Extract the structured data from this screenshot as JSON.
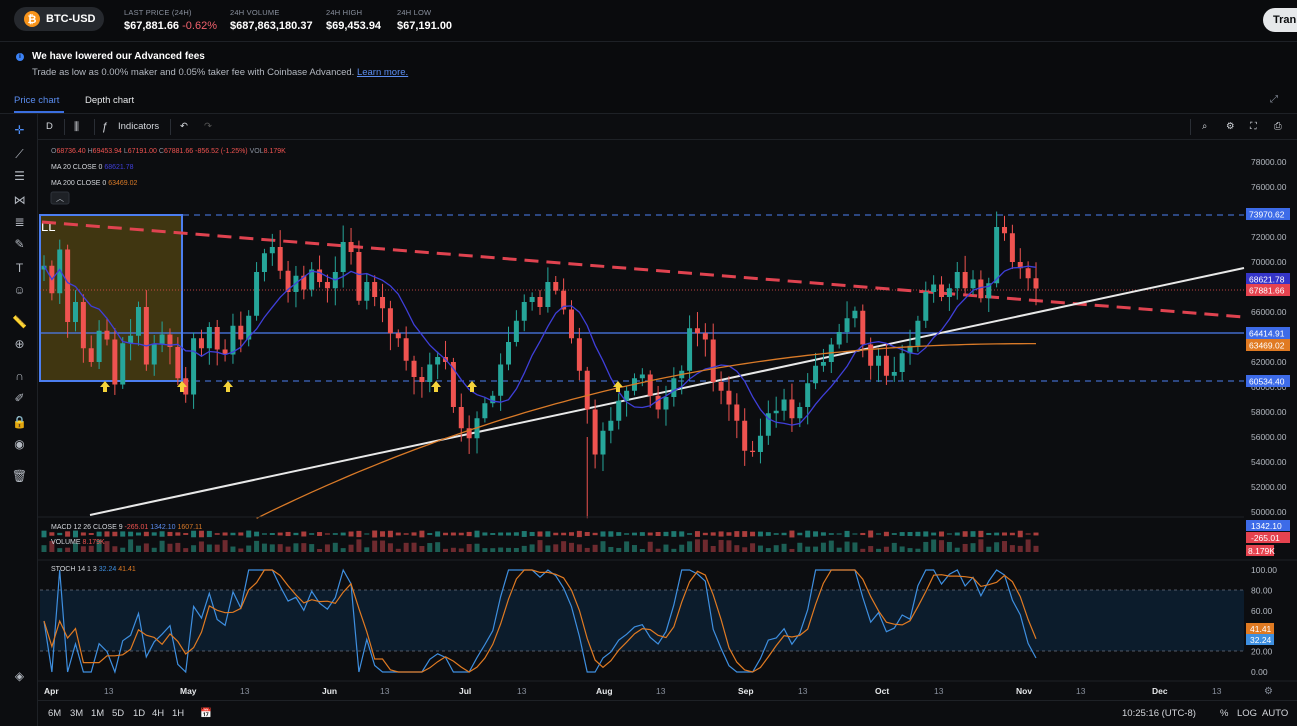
{
  "header": {
    "pair": "BTC-USD",
    "btc_symbol": "₿",
    "stats": [
      {
        "label": "LAST PRICE (24H)",
        "value": "$67,881.66",
        "change": "-0.62%"
      },
      {
        "label": "24H VOLUME",
        "value": "$687,863,180.37"
      },
      {
        "label": "24H HIGH",
        "value": "$69,453.94"
      },
      {
        "label": "24H LOW",
        "value": "$67,191.00"
      }
    ],
    "trade_label": "Tran"
  },
  "banner": {
    "title": "We have lowered our Advanced fees",
    "text": "Trade as low as 0.00% maker and 0.05% taker fee with Coinbase Advanced.",
    "link": "Learn more."
  },
  "tabs": {
    "price": "Price chart",
    "depth": "Depth chart"
  },
  "toolbar": {
    "interval": "D",
    "indicators": "Indicators"
  },
  "legend": {
    "ohlc": {
      "o": "68736.40",
      "h": "69453.94",
      "l": "67191.00",
      "c": "67881.66",
      "chg": "-856.52 (-1.25%)",
      "vol": "8.179K"
    },
    "ma20_label": "MA 20 CLOSE 0",
    "ma20_val": "68621.78",
    "ma200_label": "MA 200 CLOSE 0",
    "ma200_val": "63469.02"
  },
  "drawing_label": "LL",
  "price_axis": [
    "78000.00",
    "76000.00",
    "74000.00",
    "72000.00",
    "70000.00",
    "68000.00",
    "66000.00",
    "64000.00",
    "62000.00",
    "60000.00",
    "58000.00",
    "56000.00",
    "54000.00",
    "52000.00",
    "50000.00"
  ],
  "price_tags": {
    "top_line": "73970.62",
    "ma20": "68621.78",
    "last": "67881.66",
    "support_line": "64414.91",
    "ma200": "63469.02",
    "low_line": "60534.40"
  },
  "macd": {
    "label": "MACD 12 26 CLOSE 9",
    "hist": "-265.01",
    "macd": "1342.10",
    "signal": "1607.11"
  },
  "volume": {
    "label": "VOLUME",
    "val": "8.179K"
  },
  "stoch": {
    "label": "STOCH 14 1 3",
    "k": "32.24",
    "d": "41.41",
    "axis": [
      "100.00",
      "80.00",
      "60.00",
      "40.00",
      "20.00",
      "0.00"
    ]
  },
  "time_axis": [
    "Apr",
    "13",
    "May",
    "13",
    "Jun",
    "13",
    "Jul",
    "13",
    "Aug",
    "13",
    "Sep",
    "13",
    "Oct",
    "13",
    "Nov",
    "13",
    "Dec",
    "13"
  ],
  "ranges": [
    "6M",
    "3M",
    "1M",
    "5D",
    "1D",
    "4H",
    "1H"
  ],
  "clock": "10:25:16 (UTC-8)",
  "scale_opts": [
    "%",
    "LOG",
    "AUTO"
  ],
  "colors": {
    "up": "#26a69a",
    "down": "#ef5350",
    "ma20": "#3f3fd9",
    "ma200": "#d97a28",
    "accent": "#3b6fe0"
  },
  "chart_data": {
    "type": "candlestick",
    "series_close": [
      69700,
      67500,
      71000,
      65200,
      66800,
      63100,
      62000,
      64500,
      63800,
      60200,
      63500,
      64100,
      66400,
      61800,
      63400,
      64200,
      63200,
      60700,
      59400,
      63900,
      63100,
      64800,
      63000,
      62600,
      64900,
      63800,
      65700,
      69200,
      70700,
      71200,
      69300,
      67600,
      68900,
      67800,
      69400,
      68400,
      67900,
      69200,
      71600,
      70800,
      66900,
      68400,
      67200,
      66300,
      64300,
      63900,
      62100,
      60800,
      60400,
      61800,
      62400,
      62000,
      58400,
      56700,
      55900,
      57500,
      58700,
      59300,
      61800,
      63600,
      65300,
      66800,
      67200,
      66400,
      68400,
      67700,
      66200,
      63900,
      61300,
      58200,
      54600,
      56500,
      57300,
      58900,
      59700,
      60700,
      61000,
      59300,
      58200,
      59200,
      60700,
      61300,
      64700,
      64300,
      63800,
      60400,
      59700,
      58600,
      57300,
      54900,
      54800,
      56100,
      57900,
      58100,
      59000,
      57500,
      58400,
      60300,
      61700,
      62000,
      63400,
      64400,
      65500,
      66100,
      63400,
      61700,
      62500,
      60900,
      61200,
      62700,
      63300,
      65300,
      67600,
      68200,
      67200,
      67900,
      69200,
      67900,
      68600,
      67100,
      68300,
      72800,
      72300,
      70000,
      69500,
      68700,
      67881
    ]
  }
}
